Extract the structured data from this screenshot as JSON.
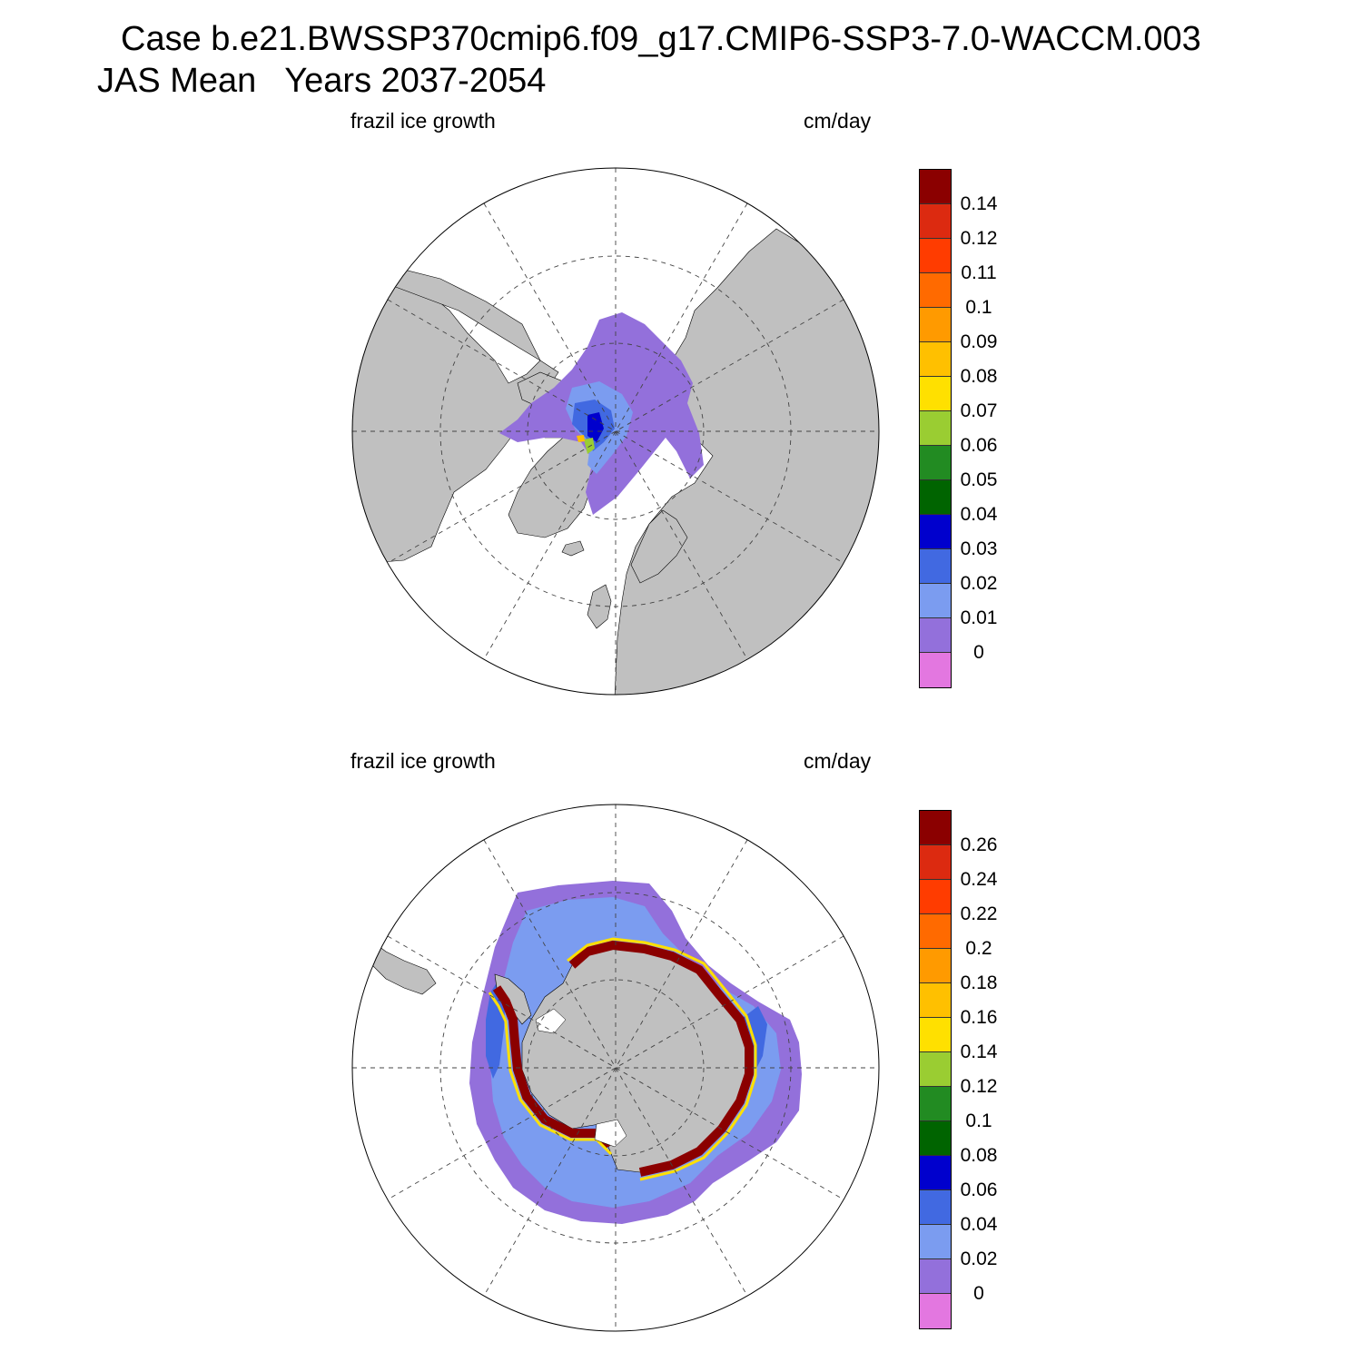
{
  "title": {
    "line1": "Case b.e21.BWSSP370cmip6.f09_g17.CMIP6-SSP3-7.0-WACCM.003",
    "line2": "JAS Mean   Years 2037-2054"
  },
  "colors": {
    "land": "#c0c0c0",
    "ocean": "#ffffff",
    "grid": "#444444",
    "scale": [
      "#e377e0",
      "#9370db",
      "#7b9cf0",
      "#4169e1",
      "#0000cd",
      "#006400",
      "#228b22",
      "#9acd32",
      "#ffe000",
      "#ffc000",
      "#ff9a00",
      "#ff6a00",
      "#ff3c00",
      "#dc2a10",
      "#8b0000"
    ]
  },
  "panels": [
    {
      "id": "north",
      "variable_label": "frazil ice growth",
      "units_label": "cm/day",
      "hemisphere": "arctic",
      "colorbar_labels": [
        "0.14",
        "0.12",
        "0.11",
        "0.1",
        "0.09",
        "0.08",
        "0.07",
        "0.06",
        "0.05",
        "0.04",
        "0.03",
        "0.02",
        "0.01",
        "0"
      ]
    },
    {
      "id": "south",
      "variable_label": "frazil ice growth",
      "units_label": "cm/day",
      "hemisphere": "antarctic",
      "colorbar_labels": [
        "0.26",
        "0.24",
        "0.22",
        "0.2",
        "0.18",
        "0.16",
        "0.14",
        "0.12",
        "0.1",
        "0.08",
        "0.06",
        "0.04",
        "0.02",
        "0"
      ]
    }
  ]
}
